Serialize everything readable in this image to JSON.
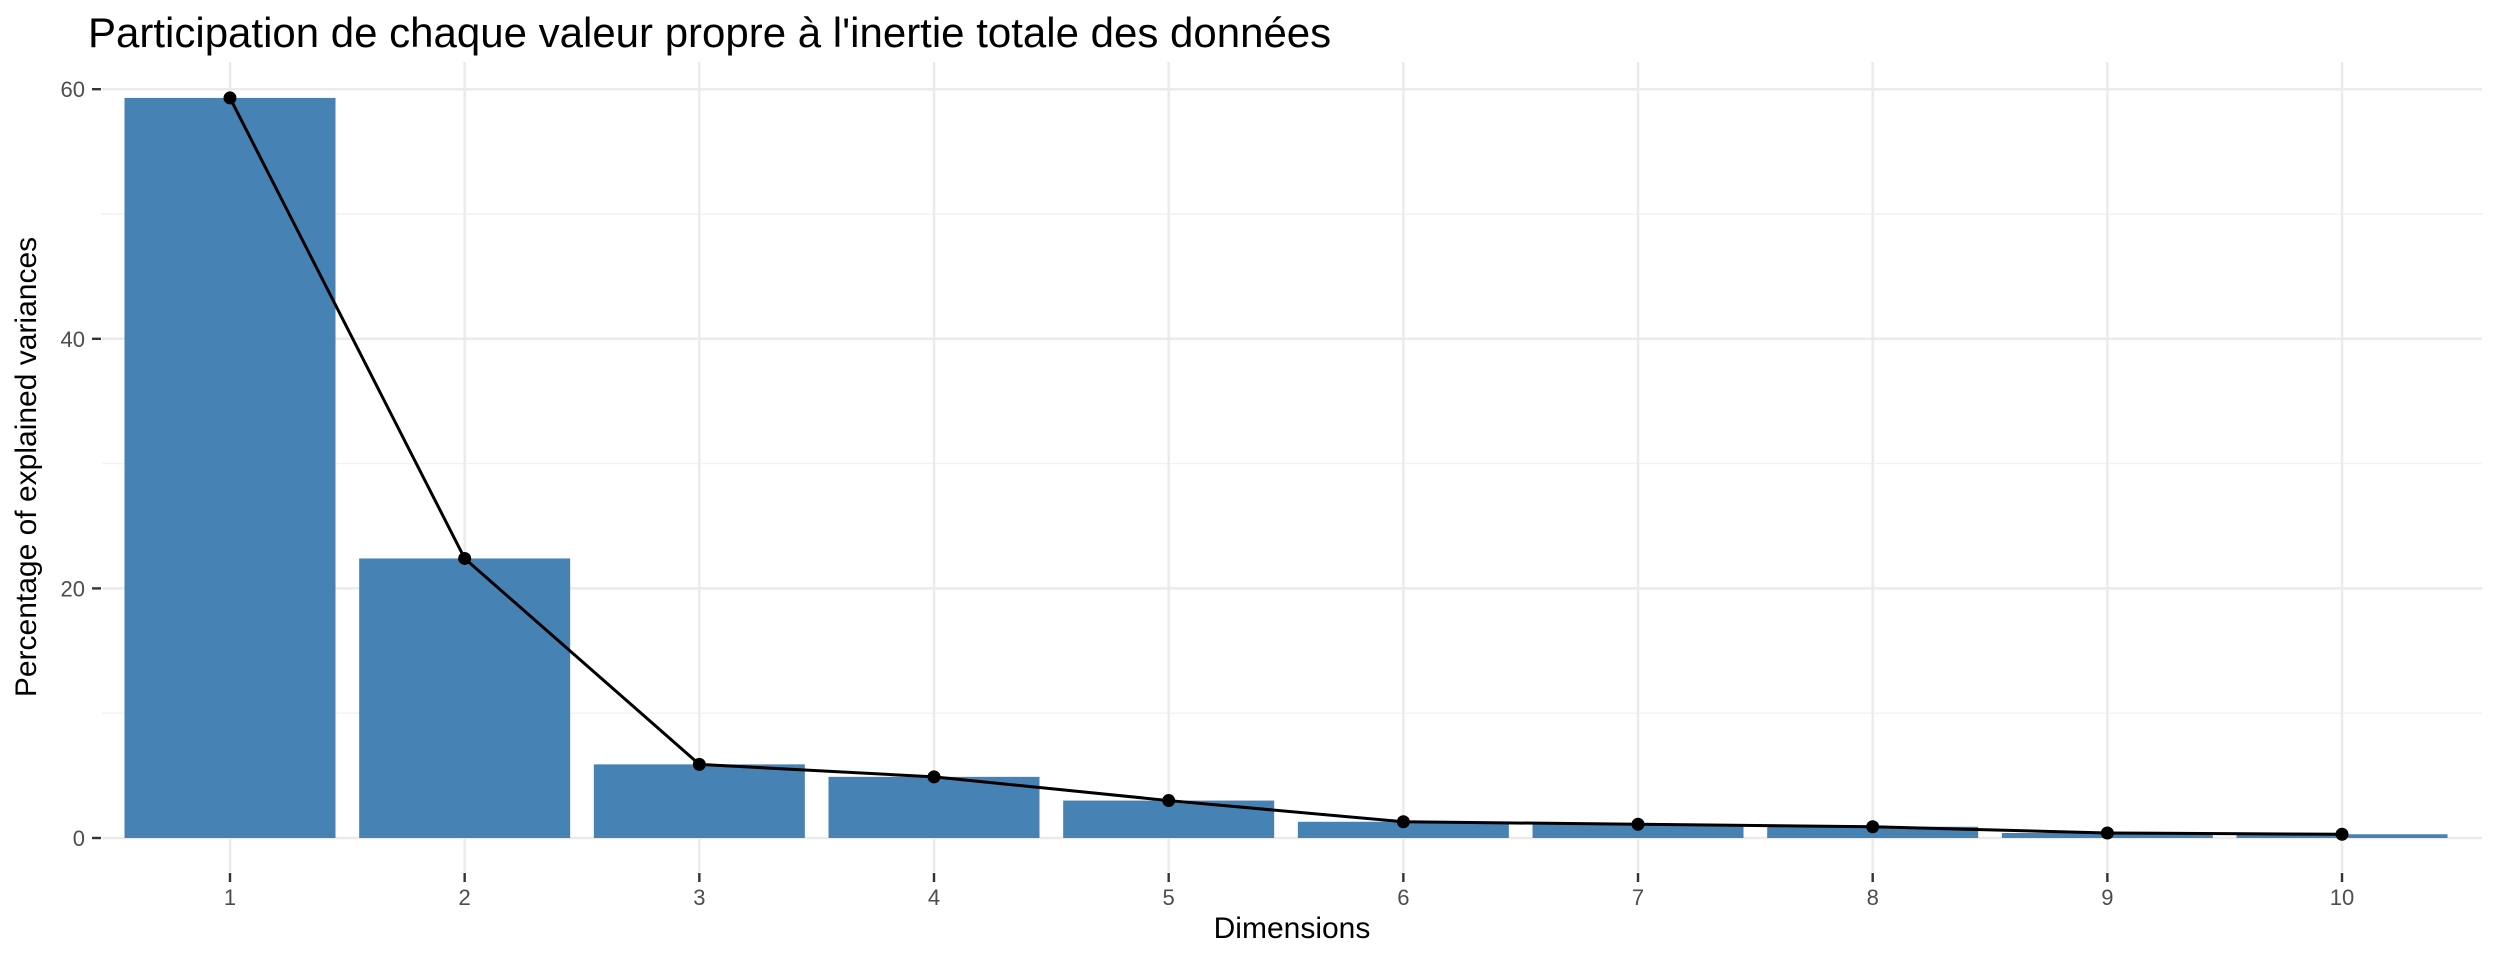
{
  "chart_data": {
    "type": "bar",
    "line_overlay": true,
    "title": "Participation de chaque valeur propre à l'inertie totale des données",
    "xlabel": "Dimensions",
    "ylabel": "Percentage of explained variances",
    "categories": [
      "1",
      "2",
      "3",
      "4",
      "5",
      "6",
      "7",
      "8",
      "9",
      "10"
    ],
    "values": [
      59.3,
      22.4,
      5.9,
      4.9,
      3.0,
      1.3,
      1.1,
      0.9,
      0.4,
      0.3
    ],
    "series": [
      {
        "name": "eigenvalue-bars",
        "values": [
          59.3,
          22.4,
          5.9,
          4.9,
          3.0,
          1.3,
          1.1,
          0.9,
          0.4,
          0.3
        ]
      },
      {
        "name": "eigenvalue-line",
        "values": [
          59.3,
          22.4,
          5.9,
          4.9,
          3.0,
          1.3,
          1.1,
          0.9,
          0.4,
          0.3
        ]
      }
    ],
    "yticks": [
      0,
      20,
      40,
      60
    ],
    "yticks_minor": [
      10,
      30,
      50
    ],
    "ylim": [
      -2.7,
      62.2
    ],
    "grid": true,
    "legend": "none",
    "colors": {
      "bar_fill": "#4682B4",
      "line": "#000000",
      "point": "#000000",
      "grid_major": "#EBEBEB",
      "grid_minor": "#F2F2F2",
      "tick_mark": "#333333",
      "tick_label": "#4D4D4D",
      "text": "#000000",
      "background": "#FFFFFF"
    }
  }
}
